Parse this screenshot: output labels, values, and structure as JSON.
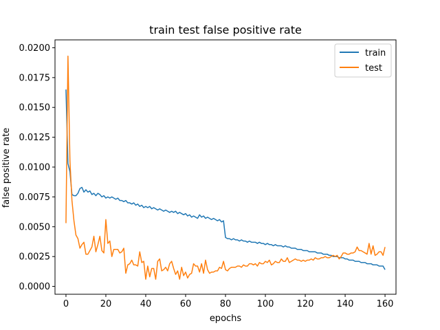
{
  "chart_data": {
    "type": "line",
    "title": "train test false positive rate",
    "xlabel": "epochs",
    "ylabel": "false positive rate",
    "xlim": [
      -5.5,
      165.5
    ],
    "ylim": [
      -0.00066,
      0.02066
    ],
    "xticks": [
      0,
      20,
      40,
      60,
      80,
      100,
      120,
      140,
      160
    ],
    "yticks": [
      0.0,
      0.0025,
      0.005,
      0.0075,
      0.01,
      0.0125,
      0.015,
      0.0175,
      0.02
    ],
    "ytick_labels": [
      "0.0000",
      "0.0025",
      "0.0050",
      "0.0075",
      "0.0100",
      "0.0125",
      "0.0150",
      "0.0175",
      "0.0200"
    ],
    "legend_position": "top-right",
    "series": [
      {
        "name": "train",
        "color": "#1f77b4",
        "values": [
          0.0165,
          0.0103,
          0.0096,
          0.0077,
          0.0076,
          0.0076,
          0.0078,
          0.0082,
          0.0083,
          0.0079,
          0.0081,
          0.0079,
          0.008,
          0.0077,
          0.0078,
          0.0076,
          0.0078,
          0.0077,
          0.0075,
          0.0076,
          0.0074,
          0.0075,
          0.0074,
          0.0075,
          0.0074,
          0.0073,
          0.0074,
          0.0072,
          0.0072,
          0.0071,
          0.0072,
          0.007,
          0.007,
          0.0069,
          0.007,
          0.0068,
          0.0069,
          0.0067,
          0.0068,
          0.0066,
          0.0067,
          0.0066,
          0.0067,
          0.0065,
          0.0066,
          0.0065,
          0.0064,
          0.0065,
          0.0064,
          0.0063,
          0.0064,
          0.0063,
          0.0062,
          0.0063,
          0.0062,
          0.0063,
          0.0061,
          0.0062,
          0.0061,
          0.006,
          0.0061,
          0.0059,
          0.006,
          0.0058,
          0.0059,
          0.0058,
          0.0057,
          0.006,
          0.0058,
          0.0059,
          0.0057,
          0.0058,
          0.0057,
          0.0056,
          0.0057,
          0.0056,
          0.0055,
          0.0056,
          0.0054,
          0.0055,
          0.0041,
          0.004,
          0.004,
          0.0039,
          0.004,
          0.0039,
          0.0039,
          0.0038,
          0.0039,
          0.0038,
          0.0038,
          0.0037,
          0.0038,
          0.0037,
          0.0037,
          0.0037,
          0.0036,
          0.0037,
          0.0036,
          0.0036,
          0.0035,
          0.0036,
          0.0035,
          0.0035,
          0.0034,
          0.0035,
          0.0034,
          0.0034,
          0.0034,
          0.0033,
          0.0034,
          0.0033,
          0.0033,
          0.0032,
          0.0032,
          0.0032,
          0.0031,
          0.0031,
          0.0031,
          0.003,
          0.003,
          0.003,
          0.0029,
          0.0029,
          0.0029,
          0.0029,
          0.0028,
          0.0028,
          0.0028,
          0.0027,
          0.0027,
          0.0027,
          0.0026,
          0.0026,
          0.0025,
          0.0025,
          0.0025,
          0.0024,
          0.0024,
          0.0024,
          0.0023,
          0.0023,
          0.0022,
          0.0022,
          0.0022,
          0.0021,
          0.0021,
          0.0021,
          0.002,
          0.002,
          0.002,
          0.0019,
          0.0019,
          0.0019,
          0.0018,
          0.0018,
          0.0018,
          0.0017,
          0.0017,
          0.0017,
          0.0014
        ]
      },
      {
        "name": "test",
        "color": "#ff7f0e",
        "values": [
          0.0053,
          0.0193,
          0.0105,
          0.0072,
          0.0055,
          0.0043,
          0.004,
          0.0032,
          0.0035,
          0.0037,
          0.0027,
          0.0027,
          0.003,
          0.0033,
          0.0042,
          0.0029,
          0.0035,
          0.0042,
          0.003,
          0.0028,
          0.0056,
          0.0036,
          0.0038,
          0.0025,
          0.0031,
          0.0031,
          0.0031,
          0.0028,
          0.0029,
          0.0032,
          0.0011,
          0.0018,
          0.0019,
          0.0022,
          0.0018,
          0.0018,
          0.0017,
          0.0029,
          0.002,
          0.0021,
          0.0006,
          0.0017,
          0.0008,
          0.0015,
          0.0015,
          0.0006,
          0.0021,
          0.0023,
          0.0013,
          0.0014,
          0.0016,
          0.0013,
          0.0019,
          0.0021,
          0.0015,
          0.001,
          0.0013,
          0.0006,
          0.0016,
          0.0009,
          0.0012,
          0.0007,
          0.001,
          0.0011,
          0.0019,
          0.0017,
          0.0017,
          0.0012,
          0.0019,
          0.0011,
          0.0022,
          0.0014,
          0.0011,
          0.0012,
          0.0012,
          0.0013,
          0.0013,
          0.0016,
          0.0015,
          0.0021,
          0.0014,
          0.0013,
          0.0015,
          0.0016,
          0.0016,
          0.0016,
          0.0017,
          0.0017,
          0.0016,
          0.0018,
          0.0017,
          0.0017,
          0.0019,
          0.0019,
          0.0018,
          0.0019,
          0.0017,
          0.002,
          0.0019,
          0.0019,
          0.0021,
          0.002,
          0.0022,
          0.0018,
          0.0019,
          0.0021,
          0.002,
          0.002,
          0.0023,
          0.0021,
          0.0021,
          0.0024,
          0.002,
          0.0021,
          0.0022,
          0.0023,
          0.0022,
          0.0022,
          0.0021,
          0.0022,
          0.0021,
          0.0022,
          0.0022,
          0.0023,
          0.0022,
          0.0024,
          0.0023,
          0.0023,
          0.0024,
          0.0024,
          0.0025,
          0.0024,
          0.0024,
          0.0025,
          0.0026,
          0.0025,
          0.0026,
          0.0023,
          0.0025,
          0.0028,
          0.0028,
          0.0027,
          0.0027,
          0.0028,
          0.0028,
          0.0029,
          0.0033,
          0.003,
          0.003,
          0.0029,
          0.0028,
          0.0027,
          0.0036,
          0.0027,
          0.0034,
          0.0026,
          0.0027,
          0.0029,
          0.0029,
          0.0026,
          0.0033
        ]
      }
    ]
  }
}
